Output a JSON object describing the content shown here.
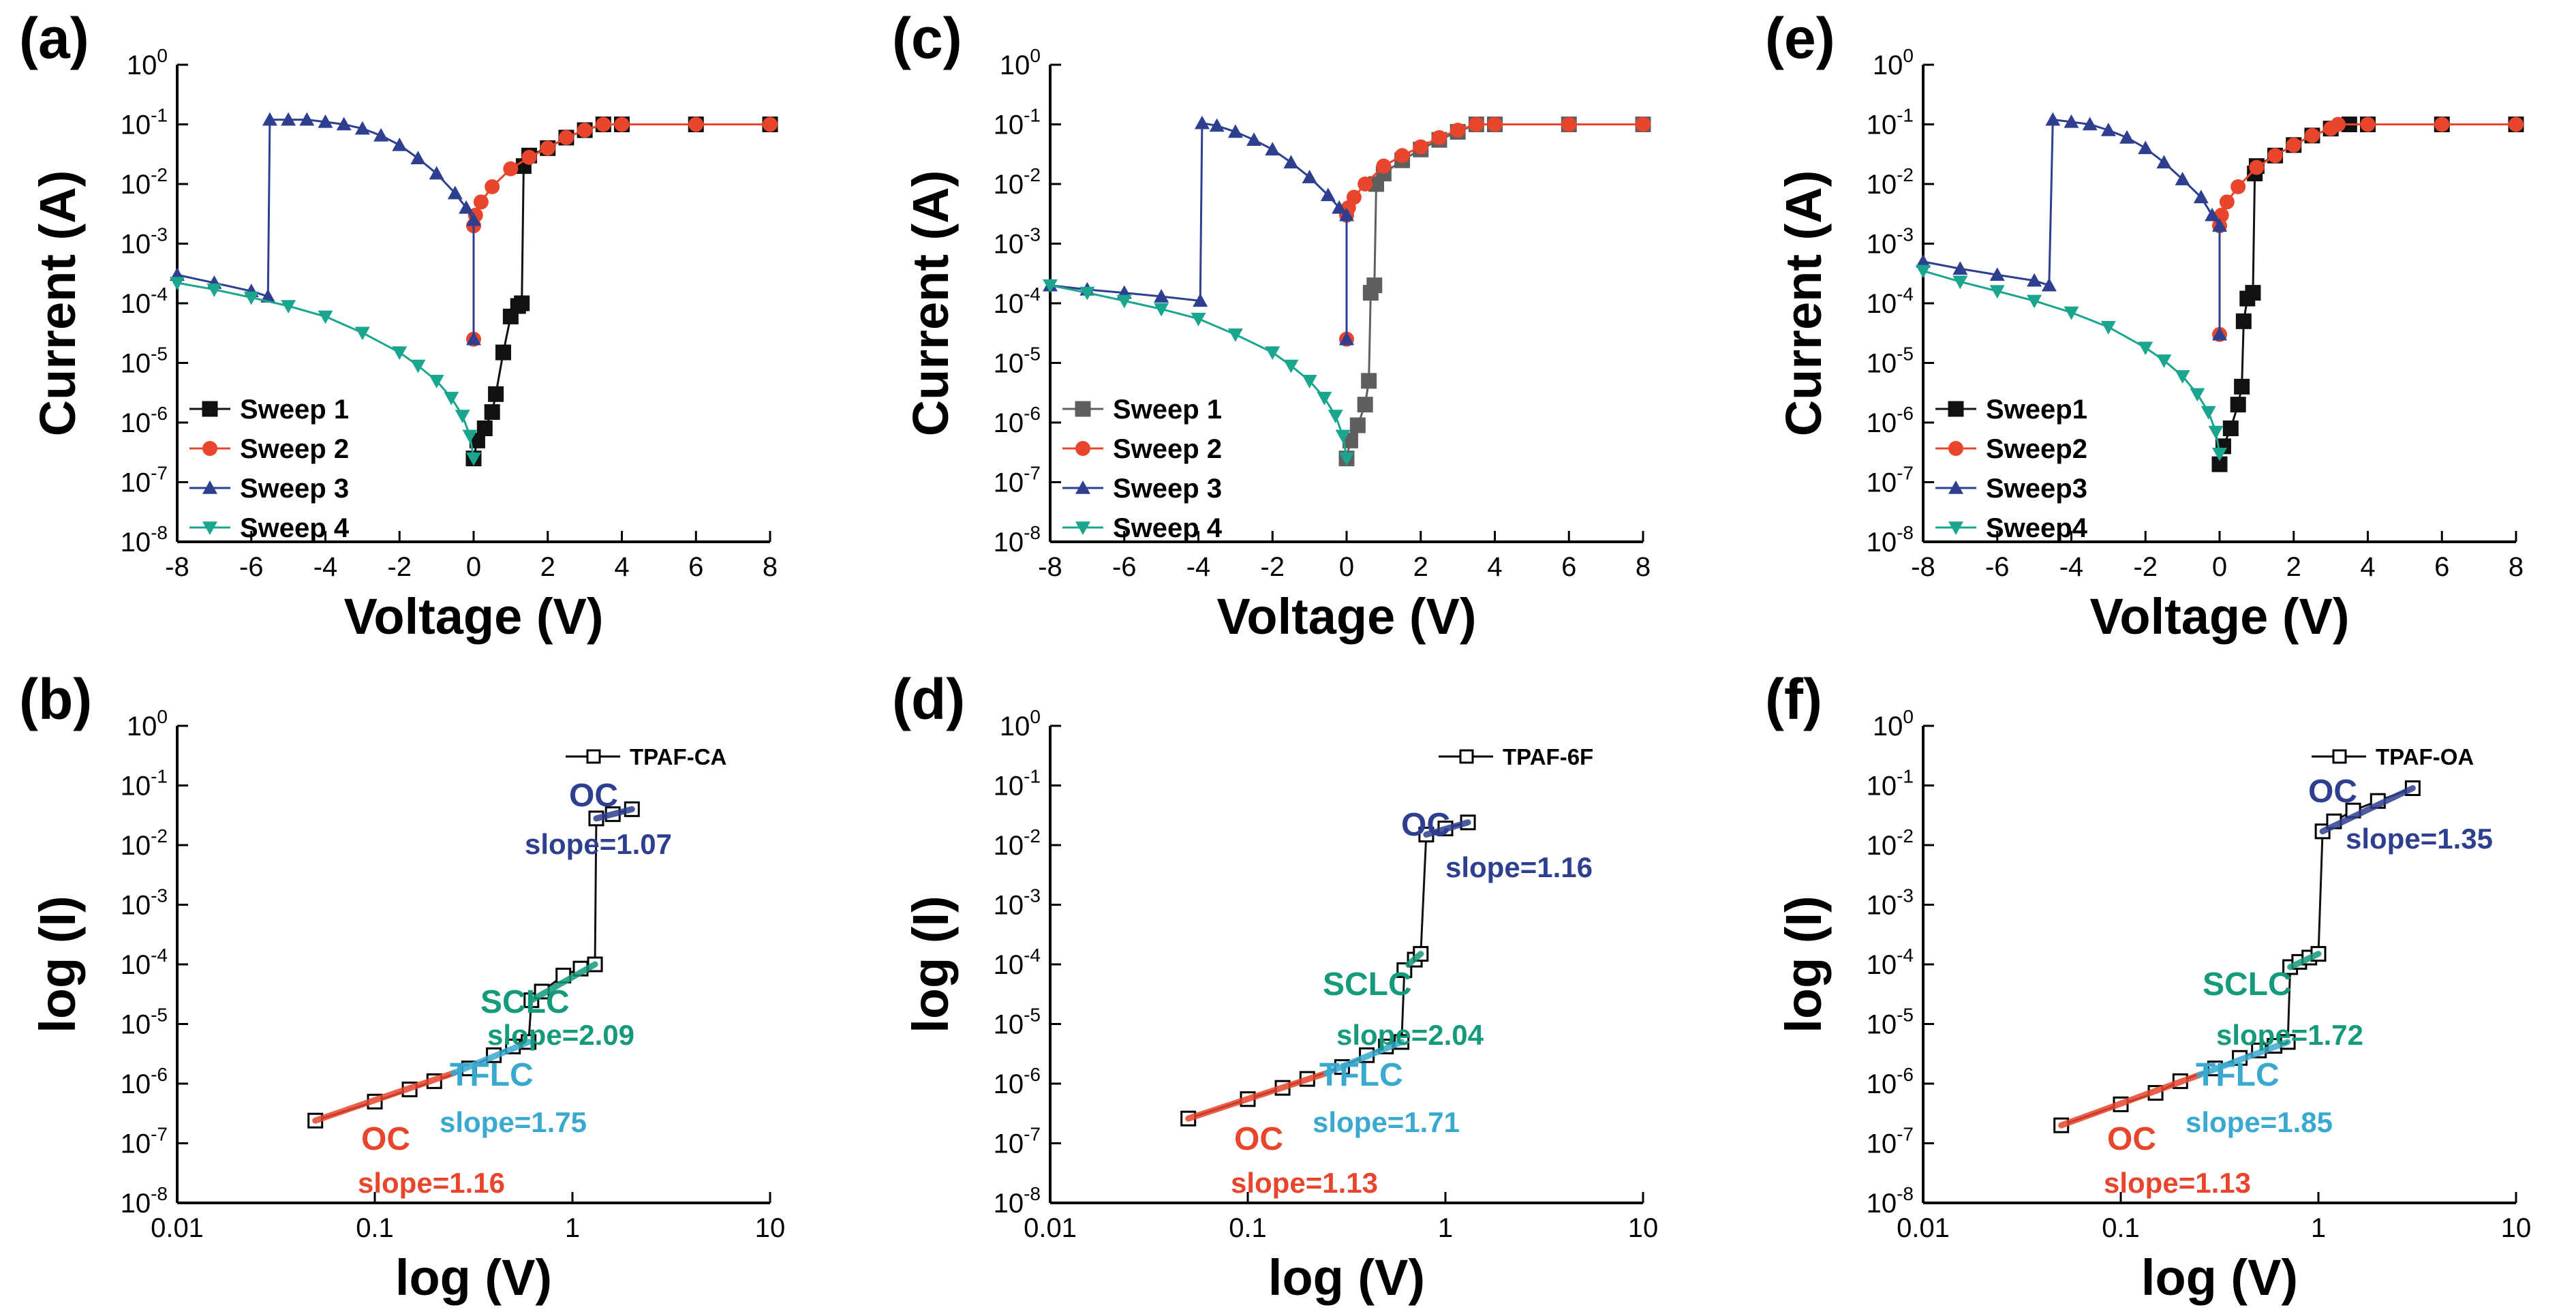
{
  "figure": {
    "background": "#ffffff",
    "colors": {
      "black": "#111111",
      "red": "#e8452c",
      "blue": "#2e3f8f",
      "teal": "#1aa58e",
      "cyan": "#3aa9cf",
      "oc_blue": "#2e3f8f",
      "sclc_green": "#159a7c"
    }
  },
  "chart_data": [
    {
      "panel": "(a)",
      "type": "line",
      "yscale": "log",
      "xlabel": "Voltage (V)",
      "ylabel": "Current (A)",
      "xlim": [
        -8,
        8
      ],
      "ylim": [
        1e-08,
        1
      ],
      "xticks": [
        "-8",
        "-6",
        "-4",
        "-2",
        "0",
        "2",
        "4",
        "6",
        "8"
      ],
      "yticks": [
        "10-8",
        "10-7",
        "10-6",
        "10-5",
        "10-4",
        "10-3",
        "10-2",
        "10-1",
        "100"
      ],
      "legend_position": "bottom-left",
      "series": [
        {
          "name": "Sweep 1",
          "color": "#111111",
          "marker": "square",
          "x": [
            0,
            0.1,
            0.3,
            0.5,
            0.6,
            0.8,
            1.0,
            1.2,
            1.3,
            1.35,
            1.5,
            2,
            2.5,
            3,
            3.5,
            4,
            6,
            8
          ],
          "y": [
            2.5e-07,
            5e-07,
            8e-07,
            1.5e-06,
            3e-06,
            1.5e-05,
            6e-05,
            9e-05,
            0.0001,
            0.02,
            0.03,
            0.04,
            0.06,
            0.08,
            0.1,
            0.1,
            0.1,
            0.1
          ]
        },
        {
          "name": "Sweep 2",
          "color": "#e8452c",
          "marker": "circle",
          "x": [
            0,
            0,
            0.05,
            0.2,
            0.5,
            1,
            1.5,
            2,
            2.5,
            3,
            3.5,
            4,
            6,
            8
          ],
          "y": [
            2.5e-05,
            0.002,
            0.003,
            0.005,
            0.009,
            0.018,
            0.028,
            0.04,
            0.06,
            0.08,
            0.1,
            0.1,
            0.1,
            0.1
          ]
        },
        {
          "name": "Sweep 3",
          "color": "#2e3f8f",
          "marker": "triangle-up",
          "x": [
            0,
            0,
            -0.2,
            -0.5,
            -1,
            -1.5,
            -2,
            -2.5,
            -3,
            -3.5,
            -4,
            -4.5,
            -5,
            -5.5,
            -5.55,
            -6,
            -7,
            -8
          ],
          "y": [
            2.5e-05,
            0.0025,
            0.004,
            0.007,
            0.015,
            0.027,
            0.045,
            0.065,
            0.085,
            0.1,
            0.11,
            0.12,
            0.12,
            0.12,
            0.00013,
            0.00016,
            0.00022,
            0.0003
          ]
        },
        {
          "name": "Sweep 4",
          "color": "#1aa58e",
          "marker": "triangle-down",
          "x": [
            0,
            -0.1,
            -0.3,
            -0.6,
            -1,
            -1.5,
            -2,
            -3,
            -4,
            -5,
            -6,
            -7,
            -8
          ],
          "y": [
            2.5e-07,
            6e-07,
            1.3e-06,
            2.6e-06,
            5e-06,
            9e-06,
            1.5e-05,
            3.2e-05,
            6e-05,
            9e-05,
            0.000125,
            0.00017,
            0.00022
          ]
        }
      ]
    },
    {
      "panel": "(c)",
      "type": "line",
      "yscale": "log",
      "xlabel": "Voltage (V)",
      "ylabel": "Current (A)",
      "xlim": [
        -8,
        8
      ],
      "ylim": [
        1e-08,
        1
      ],
      "xticks": [
        "-8",
        "-6",
        "-4",
        "-2",
        "0",
        "2",
        "4",
        "6",
        "8"
      ],
      "yticks": [
        "10-8",
        "10-7",
        "10-6",
        "10-5",
        "10-4",
        "10-3",
        "10-2",
        "10-1",
        "100"
      ],
      "legend_position": "bottom-left",
      "series": [
        {
          "name": "Sweep 1",
          "color": "#5f5f5f",
          "marker": "square",
          "x": [
            0,
            0.1,
            0.3,
            0.5,
            0.6,
            0.65,
            0.75,
            0.8,
            1,
            1.5,
            2,
            2.5,
            3,
            3.5,
            4,
            6,
            8
          ],
          "y": [
            2.5e-07,
            5e-07,
            9e-07,
            2e-06,
            5e-06,
            0.00015,
            0.0002,
            0.01,
            0.015,
            0.025,
            0.038,
            0.055,
            0.075,
            0.1,
            0.1,
            0.1,
            0.1
          ]
        },
        {
          "name": "Sweep 2",
          "color": "#e8452c",
          "marker": "circle",
          "x": [
            0,
            0,
            0.05,
            0.2,
            0.5,
            1,
            1.5,
            2,
            2.5,
            3,
            3.5,
            4,
            6,
            8
          ],
          "y": [
            2.5e-05,
            0.003,
            0.004,
            0.006,
            0.01,
            0.02,
            0.03,
            0.042,
            0.06,
            0.08,
            0.1,
            0.1,
            0.1,
            0.1
          ]
        },
        {
          "name": "Sweep 3",
          "color": "#2e3f8f",
          "marker": "triangle-up",
          "x": [
            0,
            0,
            -0.2,
            -0.5,
            -1,
            -1.5,
            -2,
            -2.5,
            -3,
            -3.5,
            -3.9,
            -3.95,
            -5,
            -6,
            -7,
            -8
          ],
          "y": [
            2.5e-05,
            0.003,
            0.004,
            0.0065,
            0.013,
            0.023,
            0.038,
            0.055,
            0.075,
            0.095,
            0.105,
            0.00011,
            0.00013,
            0.00015,
            0.00017,
            0.0002
          ]
        },
        {
          "name": "Sweep 4",
          "color": "#1aa58e",
          "marker": "triangle-down",
          "x": [
            0,
            -0.1,
            -0.3,
            -0.6,
            -1,
            -1.5,
            -2,
            -3,
            -4,
            -5,
            -6,
            -7,
            -8
          ],
          "y": [
            2.5e-07,
            6e-07,
            1.3e-06,
            2.6e-06,
            5e-06,
            9e-06,
            1.5e-05,
            3e-05,
            5.5e-05,
            8e-05,
            0.00011,
            0.00015,
            0.0002
          ]
        }
      ]
    },
    {
      "panel": "(e)",
      "type": "line",
      "yscale": "log",
      "xlabel": "Voltage (V)",
      "ylabel": "Current (A)",
      "xlim": [
        -8,
        8
      ],
      "ylim": [
        1e-08,
        1
      ],
      "xticks": [
        "-8",
        "-6",
        "-4",
        "-2",
        "0",
        "2",
        "4",
        "6",
        "8"
      ],
      "yticks": [
        "10-8",
        "10-7",
        "10-6",
        "10-5",
        "10-4",
        "10-3",
        "10-2",
        "10-1",
        "100"
      ],
      "legend_position": "bottom-left",
      "series": [
        {
          "name": "Sweep1",
          "color": "#111111",
          "marker": "square",
          "x": [
            0,
            0.1,
            0.3,
            0.5,
            0.6,
            0.65,
            0.75,
            0.9,
            0.95,
            1.0,
            1.5,
            2,
            2.5,
            3,
            3.5,
            4,
            6,
            8
          ],
          "y": [
            2e-07,
            4e-07,
            8e-07,
            2e-06,
            4e-06,
            5e-05,
            0.00012,
            0.00015,
            0.015,
            0.02,
            0.03,
            0.045,
            0.065,
            0.085,
            0.1,
            0.1,
            0.1,
            0.1
          ]
        },
        {
          "name": "Sweep2",
          "color": "#e8452c",
          "marker": "circle",
          "x": [
            0,
            0,
            0.05,
            0.2,
            0.5,
            1,
            1.5,
            2,
            2.5,
            3,
            3.2,
            4,
            6,
            8
          ],
          "y": [
            3e-05,
            0.002,
            0.003,
            0.005,
            0.009,
            0.019,
            0.03,
            0.045,
            0.065,
            0.085,
            0.1,
            0.1,
            0.1,
            0.1
          ]
        },
        {
          "name": "Sweep3",
          "color": "#2e3f8f",
          "marker": "triangle-up",
          "x": [
            0,
            0,
            -0.2,
            -0.5,
            -1,
            -1.5,
            -2,
            -2.5,
            -3,
            -3.5,
            -4,
            -4.5,
            -4.6,
            -5,
            -6,
            -7,
            -8
          ],
          "y": [
            3e-05,
            0.002,
            0.003,
            0.006,
            0.012,
            0.023,
            0.04,
            0.06,
            0.08,
            0.1,
            0.11,
            0.12,
            0.0002,
            0.00024,
            0.0003,
            0.00038,
            0.0005
          ]
        },
        {
          "name": "Sweep4",
          "color": "#1aa58e",
          "marker": "triangle-down",
          "x": [
            0,
            -0.1,
            -0.3,
            -0.6,
            -1,
            -1.5,
            -2,
            -3,
            -4,
            -5,
            -6,
            -7,
            -8
          ],
          "y": [
            3e-07,
            7e-07,
            1.5e-06,
            3e-06,
            6e-06,
            1.1e-05,
            1.8e-05,
            4e-05,
            7e-05,
            0.00011,
            0.00016,
            0.00023,
            0.00035
          ]
        }
      ]
    },
    {
      "panel": "(b)",
      "type": "line",
      "xscale": "log",
      "yscale": "log",
      "xlabel": "log (V)",
      "ylabel": "log (I)",
      "xlim": [
        0.01,
        10
      ],
      "ylim": [
        1e-08,
        1
      ],
      "xticks": [
        "0.01",
        "0.1",
        "1",
        "10"
      ],
      "yticks": [
        "10-8",
        "10-7",
        "10-6",
        "10-5",
        "10-4",
        "10-3",
        "10-2",
        "10-1",
        "100"
      ],
      "legend_position": "top-right",
      "series": [
        {
          "name": "TPAF-CA",
          "color": "#111111",
          "marker": "square",
          "x": [
            0.05,
            0.1,
            0.15,
            0.2,
            0.3,
            0.4,
            0.5,
            0.6,
            0.62,
            0.7,
            0.9,
            1.1,
            1.3,
            1.32,
            1.6,
            2.0
          ],
          "y": [
            2.4e-07,
            5e-07,
            8e-07,
            1.1e-06,
            1.8e-06,
            3e-06,
            4.2e-06,
            5e-06,
            2.5e-05,
            3.5e-05,
            6.5e-05,
            8.5e-05,
            0.0001,
            0.028,
            0.033,
            0.04
          ]
        }
      ],
      "fits": [
        {
          "label": "OC",
          "slope": "slope=1.16",
          "color": "#e8452c",
          "x": [
            0.05,
            0.25
          ],
          "y": [
            2.4e-07,
            1.5e-06
          ]
        },
        {
          "label": "TFLC",
          "slope": "slope=1.75",
          "color": "#3aa9cf",
          "x": [
            0.25,
            0.6
          ],
          "y": [
            1.5e-06,
            5e-06
          ]
        },
        {
          "label": "SCLC",
          "slope": "slope=2.09",
          "color": "#159a7c",
          "x": [
            0.62,
            1.3
          ],
          "y": [
            2.5e-05,
            0.0001
          ]
        },
        {
          "label": "OC",
          "slope": "slope=1.07",
          "color": "#2e3f8f",
          "x": [
            1.32,
            2.0
          ],
          "y": [
            0.028,
            0.04
          ]
        }
      ]
    },
    {
      "panel": "(d)",
      "type": "line",
      "xscale": "log",
      "yscale": "log",
      "xlabel": "log (V)",
      "ylabel": "log (I)",
      "xlim": [
        0.01,
        10
      ],
      "ylim": [
        1e-08,
        1
      ],
      "xticks": [
        "0.01",
        "0.1",
        "1",
        "10"
      ],
      "yticks": [
        "10-8",
        "10-7",
        "10-6",
        "10-5",
        "10-4",
        "10-3",
        "10-2",
        "10-1",
        "100"
      ],
      "legend_position": "top-right",
      "series": [
        {
          "name": "TPAF-6F",
          "color": "#111111",
          "marker": "square",
          "x": [
            0.05,
            0.1,
            0.15,
            0.2,
            0.3,
            0.4,
            0.5,
            0.6,
            0.62,
            0.7,
            0.75,
            0.8,
            1.0,
            1.3
          ],
          "y": [
            2.6e-07,
            5.5e-07,
            8.5e-07,
            1.2e-06,
            1.9e-06,
            3e-06,
            4.2e-06,
            5e-06,
            8e-05,
            0.00012,
            0.00015,
            0.015,
            0.019,
            0.024
          ]
        }
      ],
      "fits": [
        {
          "label": "OC",
          "slope": "slope=1.13",
          "color": "#e8452c",
          "x": [
            0.05,
            0.25
          ],
          "y": [
            2.6e-07,
            1.5e-06
          ]
        },
        {
          "label": "TFLC",
          "slope": "slope=1.71",
          "color": "#3aa9cf",
          "x": [
            0.25,
            0.6
          ],
          "y": [
            1.5e-06,
            5e-06
          ]
        },
        {
          "label": "SCLC",
          "slope": "slope=2.04",
          "color": "#159a7c",
          "x": [
            0.65,
            0.75
          ],
          "y": [
            0.0001,
            0.00015
          ]
        },
        {
          "label": "OC",
          "slope": "slope=1.16",
          "color": "#2e3f8f",
          "x": [
            0.8,
            1.3
          ],
          "y": [
            0.015,
            0.024
          ]
        }
      ]
    },
    {
      "panel": "(f)",
      "type": "line",
      "xscale": "log",
      "yscale": "log",
      "xlabel": "log (V)",
      "ylabel": "log (I)",
      "xlim": [
        0.01,
        10
      ],
      "ylim": [
        1e-08,
        1
      ],
      "xticks": [
        "0.01",
        "0.1",
        "1",
        "10"
      ],
      "yticks": [
        "10-8",
        "10-7",
        "10-6",
        "10-5",
        "10-4",
        "10-3",
        "10-2",
        "10-1",
        "100"
      ],
      "legend_position": "top-right",
      "series": [
        {
          "name": "TPAF-OA",
          "color": "#111111",
          "marker": "square",
          "x": [
            0.05,
            0.1,
            0.15,
            0.2,
            0.3,
            0.4,
            0.5,
            0.6,
            0.7,
            0.72,
            0.8,
            0.9,
            1.0,
            1.05,
            1.2,
            1.5,
            2.0,
            3.0
          ],
          "y": [
            2e-07,
            4.5e-07,
            7e-07,
            1.1e-06,
            1.8e-06,
            2.7e-06,
            3.6e-06,
            4.3e-06,
            5e-06,
            9e-05,
            0.00011,
            0.00013,
            0.00015,
            0.017,
            0.025,
            0.038,
            0.055,
            0.09
          ]
        }
      ],
      "fits": [
        {
          "label": "OC",
          "slope": "slope=1.13",
          "color": "#e8452c",
          "x": [
            0.05,
            0.25
          ],
          "y": [
            2e-07,
            1.4e-06
          ]
        },
        {
          "label": "TFLC",
          "slope": "slope=1.85",
          "color": "#3aa9cf",
          "x": [
            0.25,
            0.7
          ],
          "y": [
            1.4e-06,
            5e-06
          ]
        },
        {
          "label": "SCLC",
          "slope": "slope=1.72",
          "color": "#159a7c",
          "x": [
            0.72,
            1.0
          ],
          "y": [
            9e-05,
            0.00015
          ]
        },
        {
          "label": "OC",
          "slope": "slope=1.35",
          "color": "#2e3f8f",
          "x": [
            1.05,
            3.0
          ],
          "y": [
            0.017,
            0.09
          ]
        }
      ]
    }
  ]
}
